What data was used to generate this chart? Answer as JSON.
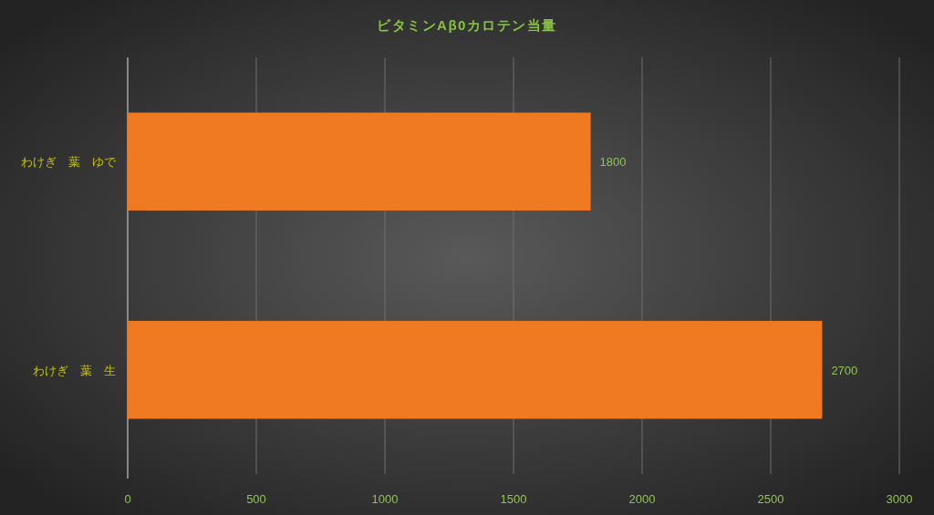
{
  "chart_data": {
    "type": "bar",
    "orientation": "horizontal",
    "title": "ビタミンAβ0カロテン当量",
    "categories": [
      "わけぎ　葉　ゆで",
      "わけぎ　葉　生"
    ],
    "values": [
      1800,
      2700
    ],
    "color": "#f07a22",
    "xlim": [
      0,
      3000
    ],
    "xticks": [
      0,
      500,
      1000,
      1500,
      2000,
      2500,
      3000
    ],
    "grid": "x",
    "data_labels": true
  }
}
